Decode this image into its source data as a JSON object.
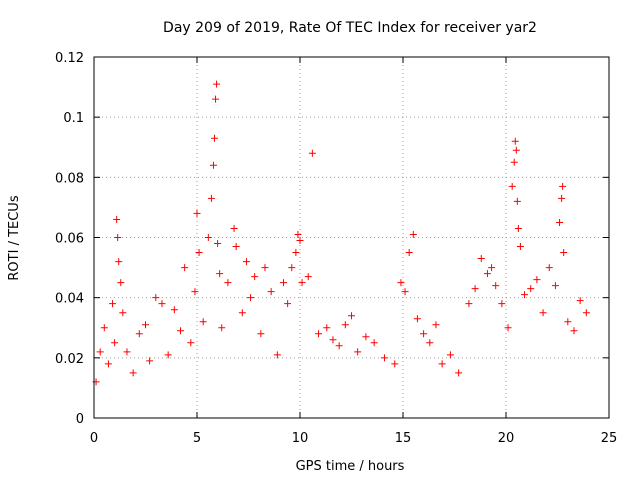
{
  "chart_data": {
    "type": "scatter",
    "title": "Day 209 of 2019, Rate Of TEC Index for receiver yar2",
    "xlabel": "GPS time / hours",
    "ylabel": "ROTI / TECUs",
    "xlim": [
      0,
      25
    ],
    "ylim": [
      0,
      0.12
    ],
    "xticks": [
      0,
      5,
      10,
      15,
      20,
      25
    ],
    "xtick_labels": [
      "0",
      "5",
      "10",
      "15",
      "20",
      "25"
    ],
    "yticks": [
      0,
      0.02,
      0.04,
      0.06,
      0.08,
      0.1,
      0.12
    ],
    "ytick_labels": [
      "0",
      "0.02",
      "0.04",
      "0.06",
      "0.08",
      "0.1",
      "0.12"
    ],
    "grid": true,
    "marker": "+",
    "series": [
      {
        "name": "ROTI",
        "color": "#ff0000",
        "points": [
          [
            0.1,
            0.012
          ],
          [
            0.3,
            0.022
          ],
          [
            0.5,
            0.03
          ],
          [
            0.7,
            0.018
          ],
          [
            0.9,
            0.038
          ],
          [
            1.0,
            0.025
          ],
          [
            1.1,
            0.066
          ],
          [
            1.15,
            0.06
          ],
          [
            1.2,
            0.052
          ],
          [
            1.3,
            0.045
          ],
          [
            1.4,
            0.035
          ],
          [
            1.6,
            0.022
          ],
          [
            1.9,
            0.015
          ],
          [
            2.2,
            0.028
          ],
          [
            2.5,
            0.031
          ],
          [
            2.7,
            0.019
          ],
          [
            3.0,
            0.04
          ],
          [
            3.3,
            0.038
          ],
          [
            3.6,
            0.021
          ],
          [
            3.9,
            0.036
          ],
          [
            4.2,
            0.029
          ],
          [
            4.4,
            0.05
          ],
          [
            4.7,
            0.025
          ],
          [
            4.9,
            0.042
          ],
          [
            5.0,
            0.068
          ],
          [
            5.1,
            0.055
          ],
          [
            5.3,
            0.032
          ],
          [
            5.55,
            0.06
          ],
          [
            5.7,
            0.073
          ],
          [
            5.8,
            0.084
          ],
          [
            5.85,
            0.093
          ],
          [
            5.9,
            0.106
          ],
          [
            5.95,
            0.111
          ],
          [
            6.0,
            0.058
          ],
          [
            6.1,
            0.048
          ],
          [
            6.2,
            0.03
          ],
          [
            6.5,
            0.045
          ],
          [
            6.8,
            0.063
          ],
          [
            6.9,
            0.057
          ],
          [
            7.2,
            0.035
          ],
          [
            7.4,
            0.052
          ],
          [
            7.6,
            0.04
          ],
          [
            7.8,
            0.047
          ],
          [
            8.1,
            0.028
          ],
          [
            8.3,
            0.05
          ],
          [
            8.6,
            0.042
          ],
          [
            8.9,
            0.021
          ],
          [
            9.2,
            0.045
          ],
          [
            9.4,
            0.038
          ],
          [
            9.6,
            0.05
          ],
          [
            9.8,
            0.055
          ],
          [
            9.9,
            0.061
          ],
          [
            10.0,
            0.059
          ],
          [
            10.1,
            0.045
          ],
          [
            10.4,
            0.047
          ],
          [
            10.6,
            0.088
          ],
          [
            10.9,
            0.028
          ],
          [
            11.3,
            0.03
          ],
          [
            11.6,
            0.026
          ],
          [
            11.9,
            0.024
          ],
          [
            12.2,
            0.031
          ],
          [
            12.5,
            0.034
          ],
          [
            12.8,
            0.022
          ],
          [
            13.2,
            0.027
          ],
          [
            13.6,
            0.025
          ],
          [
            14.1,
            0.02
          ],
          [
            14.6,
            0.018
          ],
          [
            14.9,
            0.045
          ],
          [
            15.1,
            0.042
          ],
          [
            15.3,
            0.055
          ],
          [
            15.5,
            0.061
          ],
          [
            15.7,
            0.033
          ],
          [
            16.0,
            0.028
          ],
          [
            16.3,
            0.025
          ],
          [
            16.6,
            0.031
          ],
          [
            16.9,
            0.018
          ],
          [
            17.3,
            0.021
          ],
          [
            17.7,
            0.015
          ],
          [
            18.2,
            0.038
          ],
          [
            18.5,
            0.043
          ],
          [
            18.8,
            0.053
          ],
          [
            19.1,
            0.048
          ],
          [
            19.3,
            0.05
          ],
          [
            19.5,
            0.044
          ],
          [
            19.8,
            0.038
          ],
          [
            20.1,
            0.03
          ],
          [
            20.3,
            0.077
          ],
          [
            20.4,
            0.085
          ],
          [
            20.45,
            0.092
          ],
          [
            20.5,
            0.089
          ],
          [
            20.55,
            0.072
          ],
          [
            20.6,
            0.063
          ],
          [
            20.7,
            0.057
          ],
          [
            20.9,
            0.041
          ],
          [
            21.2,
            0.043
          ],
          [
            21.5,
            0.046
          ],
          [
            21.8,
            0.035
          ],
          [
            22.1,
            0.05
          ],
          [
            22.4,
            0.044
          ],
          [
            22.6,
            0.065
          ],
          [
            22.7,
            0.073
          ],
          [
            22.75,
            0.077
          ],
          [
            22.8,
            0.055
          ],
          [
            23.0,
            0.032
          ],
          [
            23.3,
            0.029
          ],
          [
            23.6,
            0.039
          ],
          [
            23.9,
            0.035
          ]
        ]
      }
    ]
  }
}
